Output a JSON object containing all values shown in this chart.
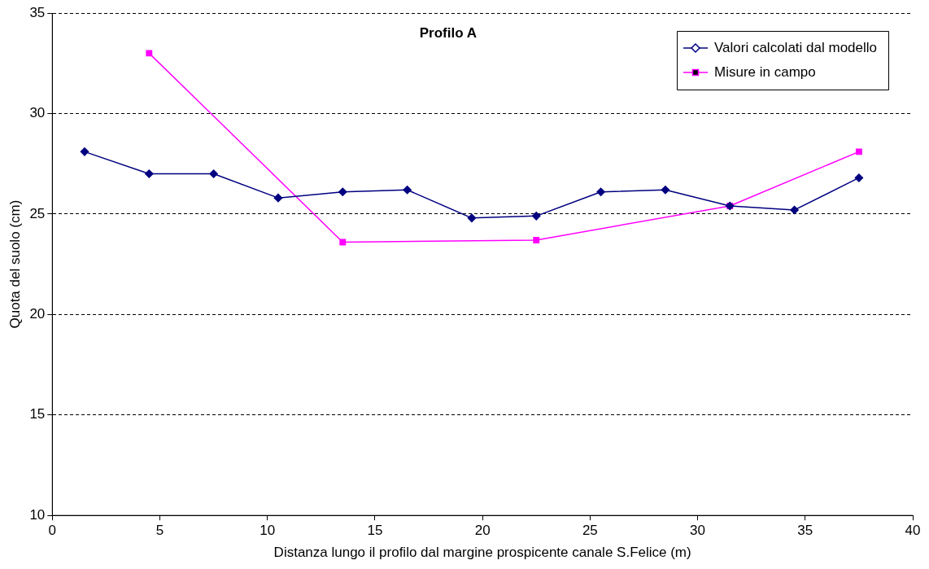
{
  "chart_data": {
    "type": "line",
    "title": "Profilo A",
    "xlabel": "Distanza lungo il profilo dal margine prospicente canale S.Felice (m)",
    "ylabel": "Quota del suolo (cm)",
    "series": [
      {
        "name": "Valori calcolati dal modello",
        "color": "#000080",
        "marker": "diamond",
        "x": [
          1.5,
          4.5,
          7.5,
          10.5,
          13.5,
          16.5,
          19.5,
          22.5,
          25.5,
          28.5,
          31.5,
          34.5,
          37.5
        ],
        "values": [
          28.1,
          27.0,
          27.0,
          25.8,
          26.1,
          26.2,
          24.8,
          24.9,
          26.1,
          26.2,
          25.4,
          25.2,
          26.8
        ]
      },
      {
        "name": "Misure in campo",
        "color": "#ff00ff",
        "marker": "square",
        "x": [
          4.5,
          13.5,
          22.5,
          31.5,
          37.5
        ],
        "values": [
          33.0,
          23.6,
          23.7,
          25.4,
          28.1
        ]
      }
    ],
    "xlim": [
      0,
      40
    ],
    "xticks": [
      0,
      5,
      10,
      15,
      20,
      25,
      30,
      35,
      40
    ],
    "ylim": [
      10,
      35
    ],
    "yticks": [
      10,
      15,
      20,
      25,
      30,
      35
    ],
    "grid": "y",
    "legend": "top right",
    "line_style": "solid"
  }
}
